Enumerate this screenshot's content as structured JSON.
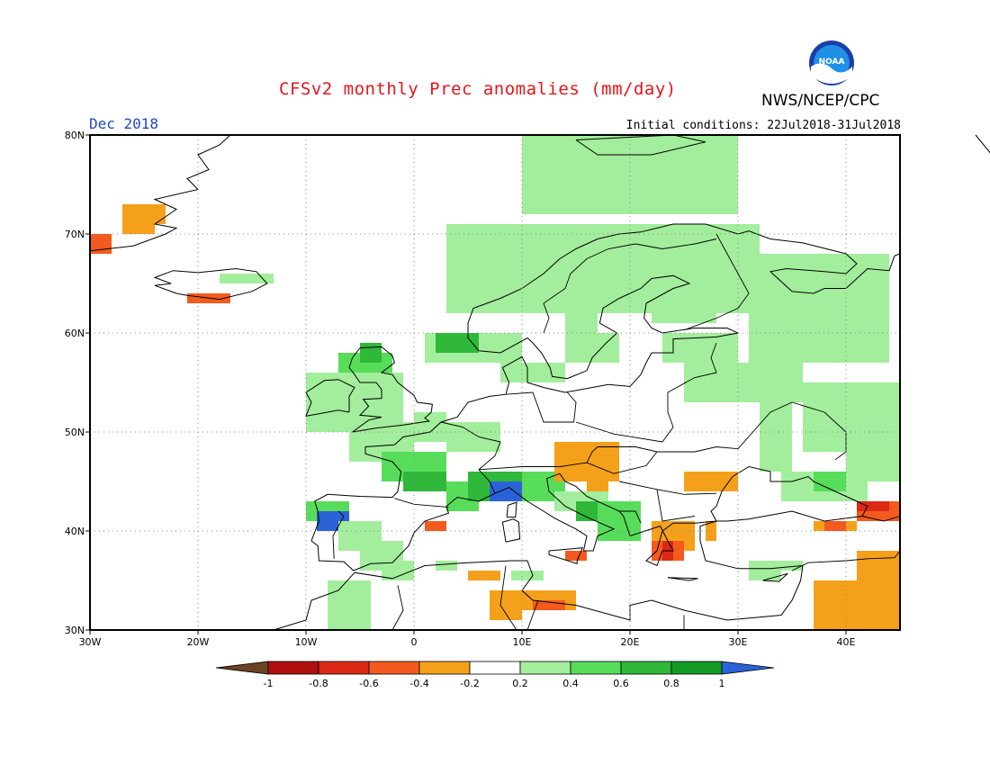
{
  "title": "CFSv2 monthly Prec anomalies (mm/day)",
  "organization": "NWS/NCEP/CPC",
  "logo_text": "NOAA",
  "month_label": "Dec 2018",
  "initial_conditions": "Initial conditions: 22Jul2018-31Jul2018",
  "map": {
    "lon_labels": [
      "30W",
      "20W",
      "10W",
      "0",
      "10E",
      "20E",
      "30E",
      "40E"
    ],
    "lat_labels": [
      "80N",
      "70N",
      "60N",
      "50N",
      "40N",
      "30N"
    ],
    "lon_range": [
      -30,
      45
    ],
    "lat_range": [
      30,
      80
    ],
    "gridlines": "dotted"
  },
  "colorbar": {
    "labels": [
      "-1",
      "-0.8",
      "-0.6",
      "-0.4",
      "-0.2",
      "0.2",
      "0.4",
      "0.6",
      "0.8",
      "1"
    ],
    "colors": [
      "#6b4225",
      "#b01010",
      "#dc2a16",
      "#f25a1e",
      "#f5a01a",
      "#ffffff",
      "#a3ee9c",
      "#57dd59",
      "#2fb83a",
      "#149a26",
      "#2a63d8"
    ]
  }
}
